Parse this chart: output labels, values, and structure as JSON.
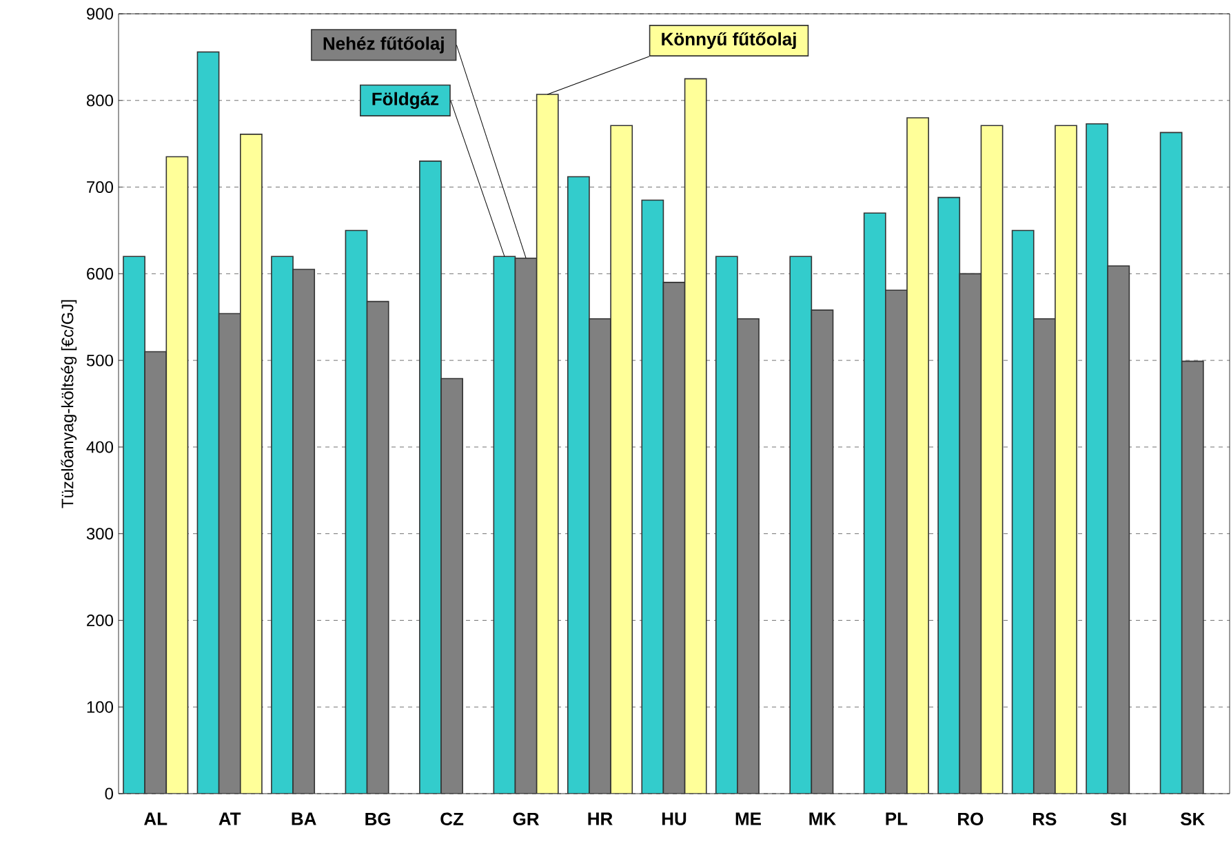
{
  "chart_data": {
    "type": "bar",
    "ylabel": "Tüzelőanyag-költség [€c/GJ]",
    "categories": [
      "AL",
      "AT",
      "BA",
      "BG",
      "CZ",
      "GR",
      "HR",
      "HU",
      "ME",
      "MK",
      "PL",
      "RO",
      "RS",
      "SI",
      "SK"
    ],
    "series": [
      {
        "name": "Földgáz",
        "color": "#33cccc",
        "values": [
          620,
          856,
          620,
          650,
          730,
          620,
          712,
          685,
          620,
          620,
          670,
          688,
          650,
          773,
          763
        ]
      },
      {
        "name": "Nehéz fűtőolaj",
        "color": "#808080",
        "values": [
          510,
          554,
          605,
          568,
          479,
          618,
          548,
          590,
          548,
          558,
          581,
          600,
          548,
          609,
          499
        ]
      },
      {
        "name": "Könnyű fűtőolaj",
        "color": "#ffff99",
        "values": [
          735,
          761,
          null,
          null,
          null,
          807,
          771,
          825,
          null,
          null,
          780,
          771,
          771,
          null,
          null
        ]
      }
    ],
    "ylim": [
      0,
      900
    ],
    "yticks": [
      0,
      100,
      200,
      300,
      400,
      500,
      600,
      700,
      800,
      900
    ],
    "grid": "y"
  }
}
